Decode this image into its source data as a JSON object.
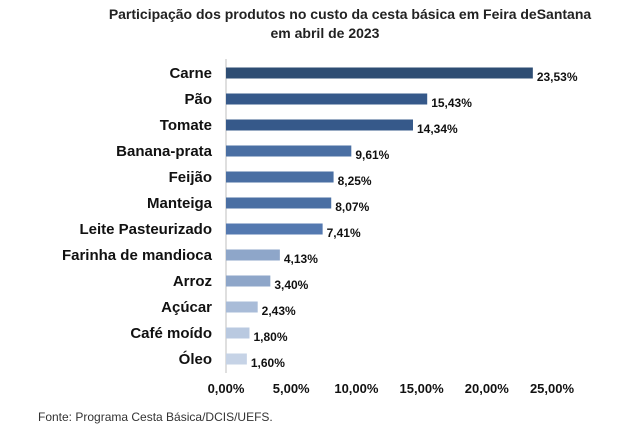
{
  "chart_data": {
    "type": "bar",
    "orientation": "horizontal",
    "title_line1": "Participação dos produtos no custo da cesta básica em Feira deSantana",
    "title_line2": "em abril de 2023",
    "categories": [
      "Carne",
      "Pão",
      "Tomate",
      "Banana-prata",
      "Feijão",
      "Manteiga",
      "Leite Pasteurizado",
      "Farinha de mandioca",
      "Arroz",
      "Açúcar",
      "Café moído",
      "Óleo"
    ],
    "values": [
      23.53,
      15.43,
      14.34,
      9.61,
      8.25,
      8.07,
      7.41,
      4.13,
      3.4,
      2.43,
      1.8,
      1.6
    ],
    "value_labels": [
      "23,53%",
      "15,43%",
      "14,34%",
      "9,61%",
      "8,25%",
      "8,07%",
      "7,41%",
      "4,13%",
      "3,40%",
      "2,43%",
      "1,80%",
      "1,60%"
    ],
    "bar_colors": [
      "#2e4d73",
      "#36598a",
      "#36598a",
      "#4a6fa3",
      "#4a6fa3",
      "#4a6fa3",
      "#5479b0",
      "#8ea6c9",
      "#8ea6c9",
      "#a9bcd8",
      "#b9c9e0",
      "#c6d3e6"
    ],
    "xlim": [
      0,
      25
    ],
    "xticks": [
      0,
      5,
      10,
      15,
      20,
      25
    ],
    "xtick_labels": [
      "0,00%",
      "5,00%",
      "10,00%",
      "15,00%",
      "20,00%",
      "25,00%"
    ],
    "grid": false,
    "legend": "none"
  },
  "source_note": "Fonte: Programa Cesta Básica/DCIS/UEFS."
}
